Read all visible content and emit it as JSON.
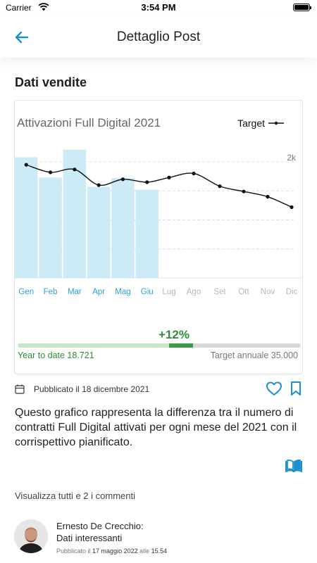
{
  "status": {
    "carrier": "Carrier",
    "time": "3:54 PM"
  },
  "nav": {
    "title": "Dettaglio Post"
  },
  "section": {
    "title": "Dati vendite"
  },
  "chart_data": {
    "type": "bar",
    "title": "Attivazioni Full Digital 2021",
    "categories": [
      "Gen",
      "Feb",
      "Mar",
      "Apr",
      "Mag",
      "Giu",
      "Lug",
      "Ago",
      "Set",
      "Ott",
      "Nov",
      "Dic"
    ],
    "series": [
      {
        "type": "bar",
        "values": [
          2.08,
          1.73,
          2.21,
          1.57,
          1.72,
          1.52,
          null,
          null,
          null,
          null,
          null,
          null
        ]
      },
      {
        "type": "line",
        "name": "Target",
        "values": [
          1.95,
          1.82,
          1.87,
          1.6,
          1.7,
          1.65,
          1.73,
          1.8,
          1.58,
          1.49,
          1.4,
          1.22
        ]
      }
    ],
    "ytick_labels": [
      "2k"
    ],
    "ylim": [
      0,
      2.4
    ],
    "legend": "top-right",
    "colors": {
      "bar": "#cdeaf7",
      "line": "#111111",
      "active_tick": "#2aa3d8",
      "inactive_tick": "#b7b7b7"
    },
    "progress": {
      "change_label": "+12%",
      "ytd_label": "Year to date 18.721",
      "target_label": "Target annuale 35.000",
      "ytd_value": 18721,
      "target_value": 35000,
      "colors": {
        "ytd": "#2e8b3a",
        "bar_light": "#c9e7c8",
        "bar_dark": "#3c9b45",
        "track": "#d8d8d8"
      }
    }
  },
  "meta": {
    "published_prefix": "Pubblicato il",
    "published_date": "18 dicembre 2021"
  },
  "post": {
    "description": "Questo grafico rappresenta la differenza tra il numero di contratti Full Digital attivati per ogni mese del 2021 con il corrispettivo pianificato."
  },
  "comments": {
    "link": "Visualizza tutti e 2 i commenti",
    "items": [
      {
        "author": "Ernesto De Crecchio:",
        "text": "Dati interessanti",
        "date_prefix": "Pubblicato il",
        "date": "17 maggio 2022",
        "time_prefix": "alle",
        "time": "15.54"
      }
    ]
  },
  "accent_color": "#1c8fd0"
}
